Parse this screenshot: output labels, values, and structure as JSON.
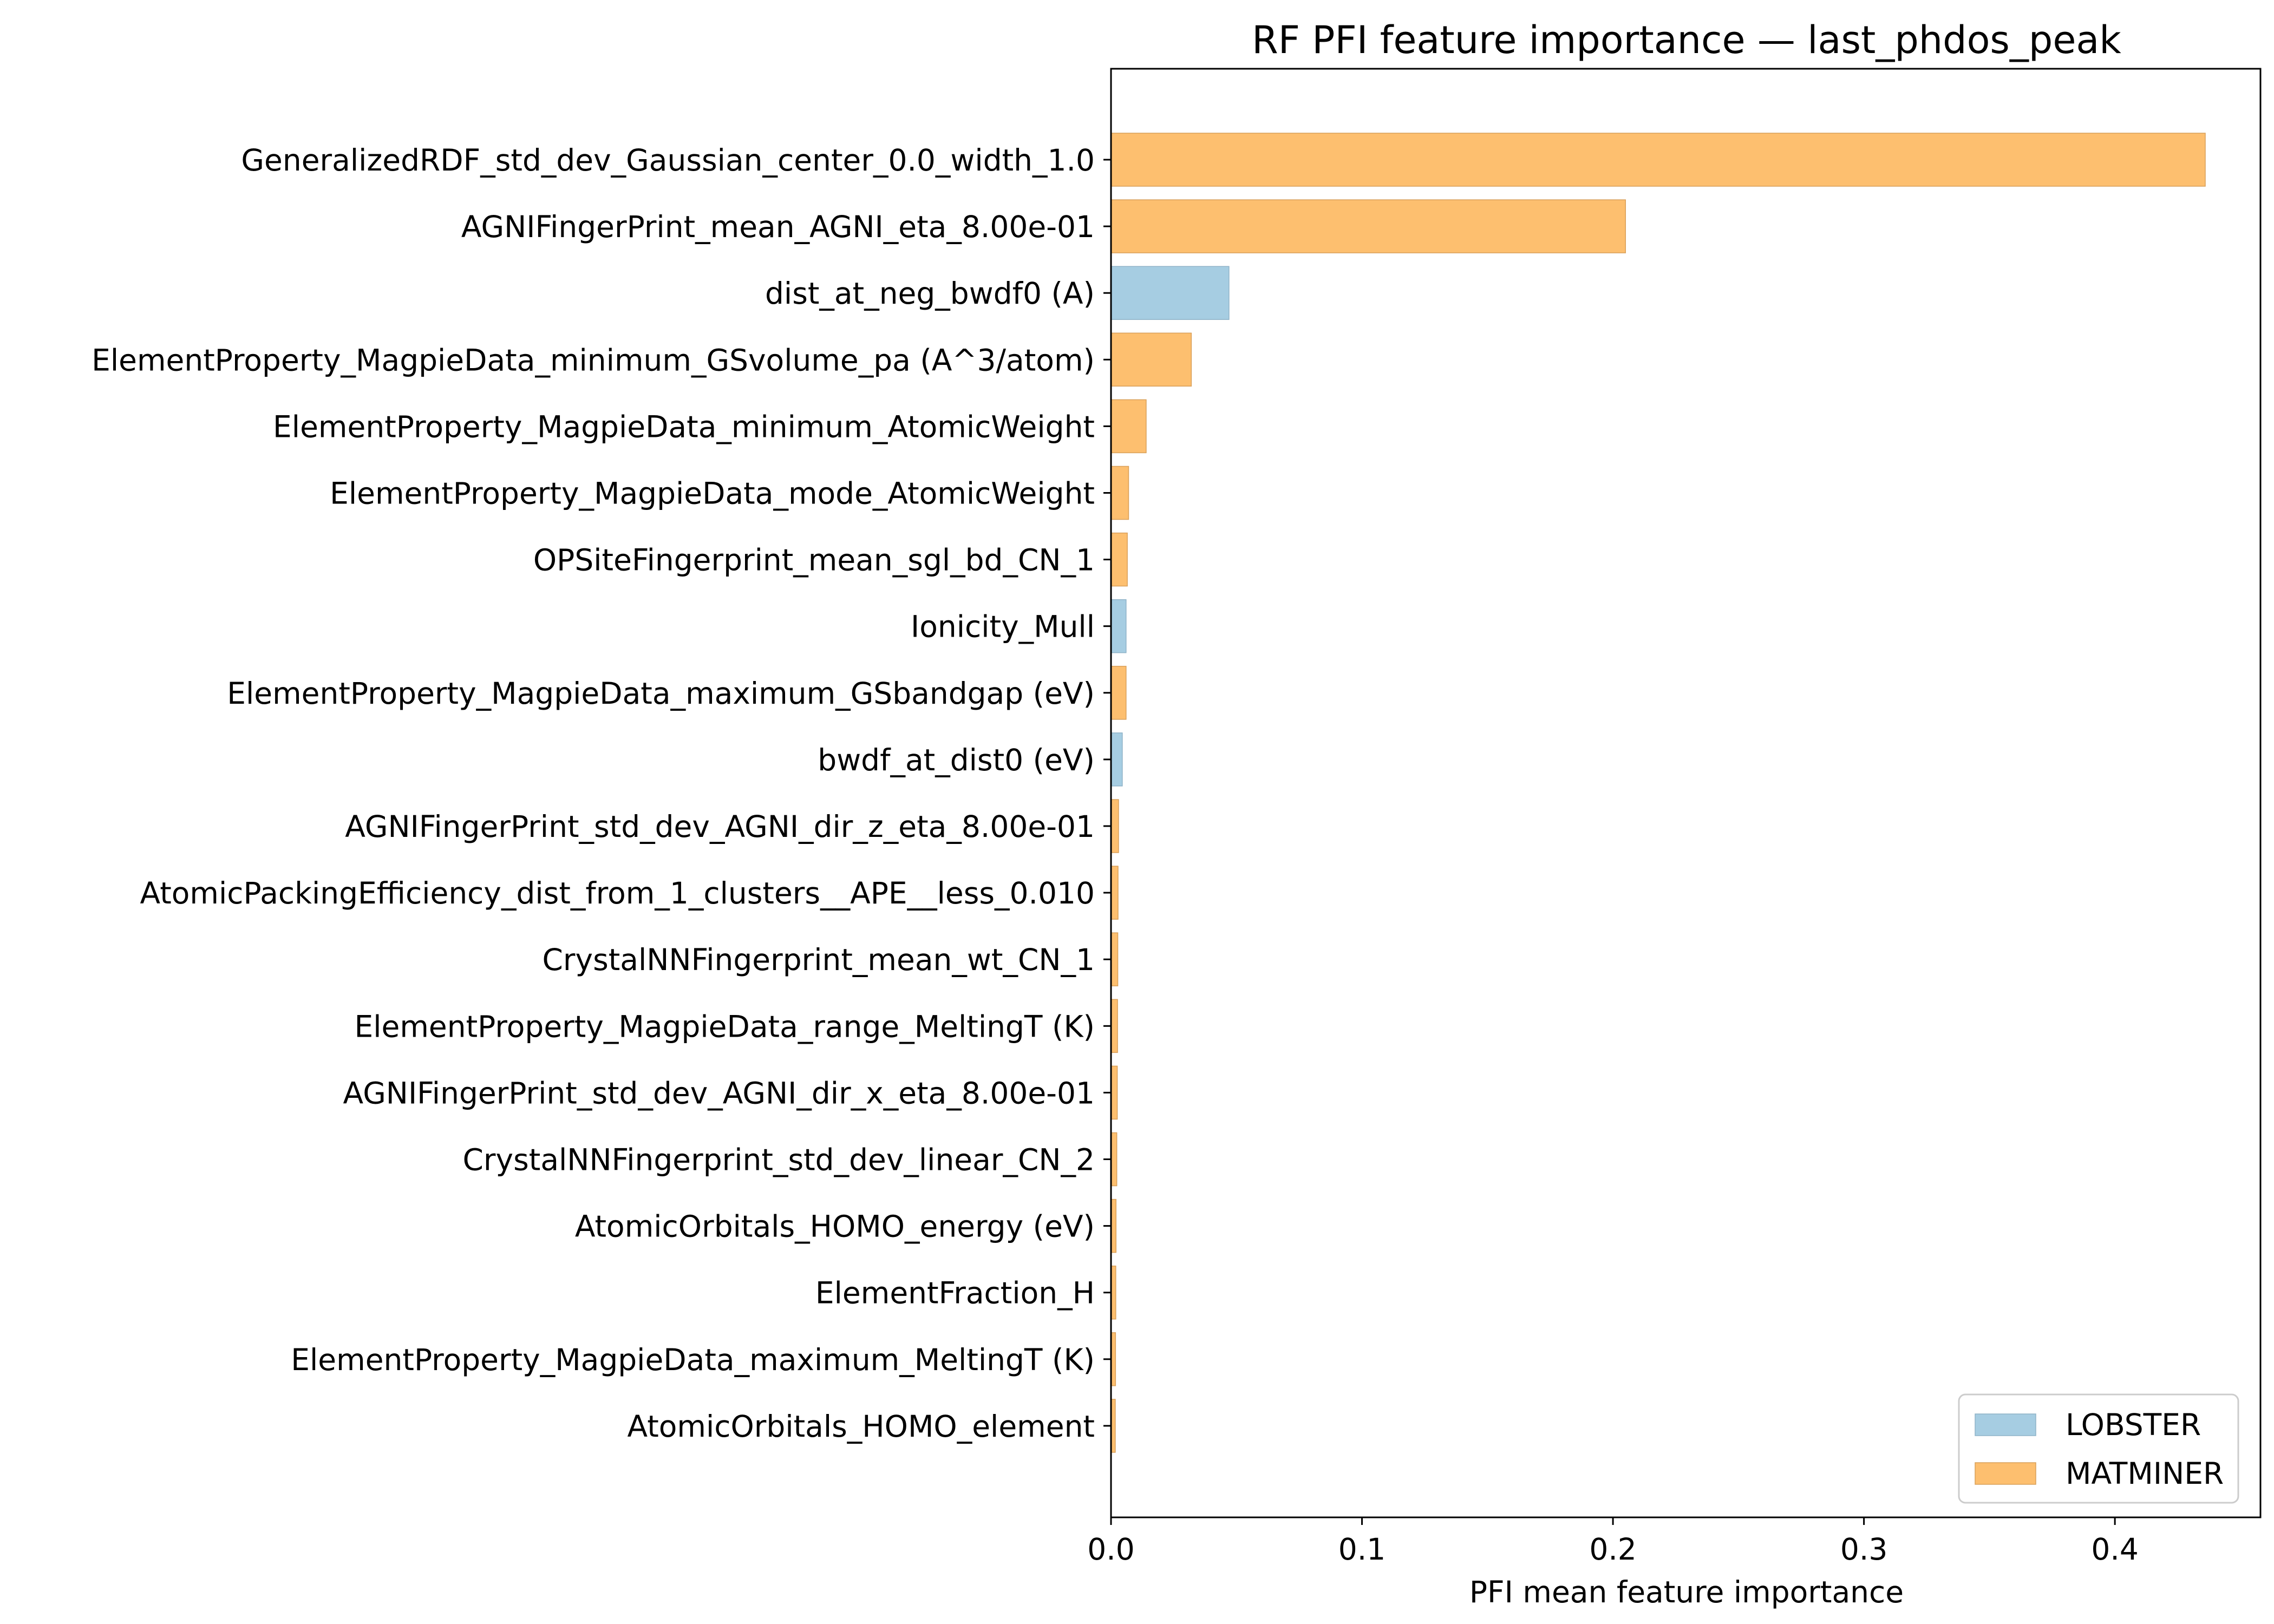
{
  "chart_data": {
    "type": "bar",
    "orientation": "horizontal",
    "title": "RF PFI feature importance — last_phdos_peak",
    "xlabel": "PFI mean feature importance",
    "ylabel": "",
    "xlim": [
      0,
      0.458
    ],
    "xticks": [
      0.0,
      0.1,
      0.2,
      0.3,
      0.4
    ],
    "xtick_labels": [
      "0.0",
      "0.1",
      "0.2",
      "0.3",
      "0.4"
    ],
    "grid": false,
    "legend_position": "bottom-right",
    "legend": [
      {
        "name": "LOBSTER",
        "color": "#a6cde2"
      },
      {
        "name": "MATMINER",
        "color": "#fdbf6f"
      }
    ],
    "categories": [
      "GeneralizedRDF_std_dev_Gaussian_center_0.0_width_1.0",
      "AGNIFingerPrint_mean_AGNI_eta_8.00e-01",
      "dist_at_neg_bwdf0 (A)",
      "ElementProperty_MagpieData_minimum_GSvolume_pa (A^3/atom)",
      "ElementProperty_MagpieData_minimum_AtomicWeight",
      "ElementProperty_MagpieData_mode_AtomicWeight",
      "OPSiteFingerprint_mean_sgl_bd_CN_1",
      "Ionicity_Mull",
      "ElementProperty_MagpieData_maximum_GSbandgap (eV)",
      "bwdf_at_dist0 (eV)",
      "AGNIFingerPrint_std_dev_AGNI_dir_z_eta_8.00e-01",
      "AtomicPackingEfficiency_dist_from_1_clusters__APE__less_0.010",
      "CrystalNNFingerprint_mean_wt_CN_1",
      "ElementProperty_MagpieData_range_MeltingT (K)",
      "AGNIFingerPrint_std_dev_AGNI_dir_x_eta_8.00e-01",
      "CrystalNNFingerprint_std_dev_linear_CN_2",
      "AtomicOrbitals_HOMO_energy (eV)",
      "ElementFraction_H",
      "ElementProperty_MagpieData_maximum_MeltingT (K)",
      "AtomicOrbitals_HOMO_element"
    ],
    "values": [
      0.436,
      0.205,
      0.047,
      0.032,
      0.014,
      0.007,
      0.0065,
      0.006,
      0.006,
      0.0045,
      0.003,
      0.0028,
      0.0027,
      0.0026,
      0.0025,
      0.0023,
      0.002,
      0.0019,
      0.0018,
      0.0017
    ],
    "groups": [
      "MATMINER",
      "MATMINER",
      "LOBSTER",
      "MATMINER",
      "MATMINER",
      "MATMINER",
      "MATMINER",
      "LOBSTER",
      "MATMINER",
      "LOBSTER",
      "MATMINER",
      "MATMINER",
      "MATMINER",
      "MATMINER",
      "MATMINER",
      "MATMINER",
      "MATMINER",
      "MATMINER",
      "MATMINER",
      "MATMINER"
    ]
  }
}
